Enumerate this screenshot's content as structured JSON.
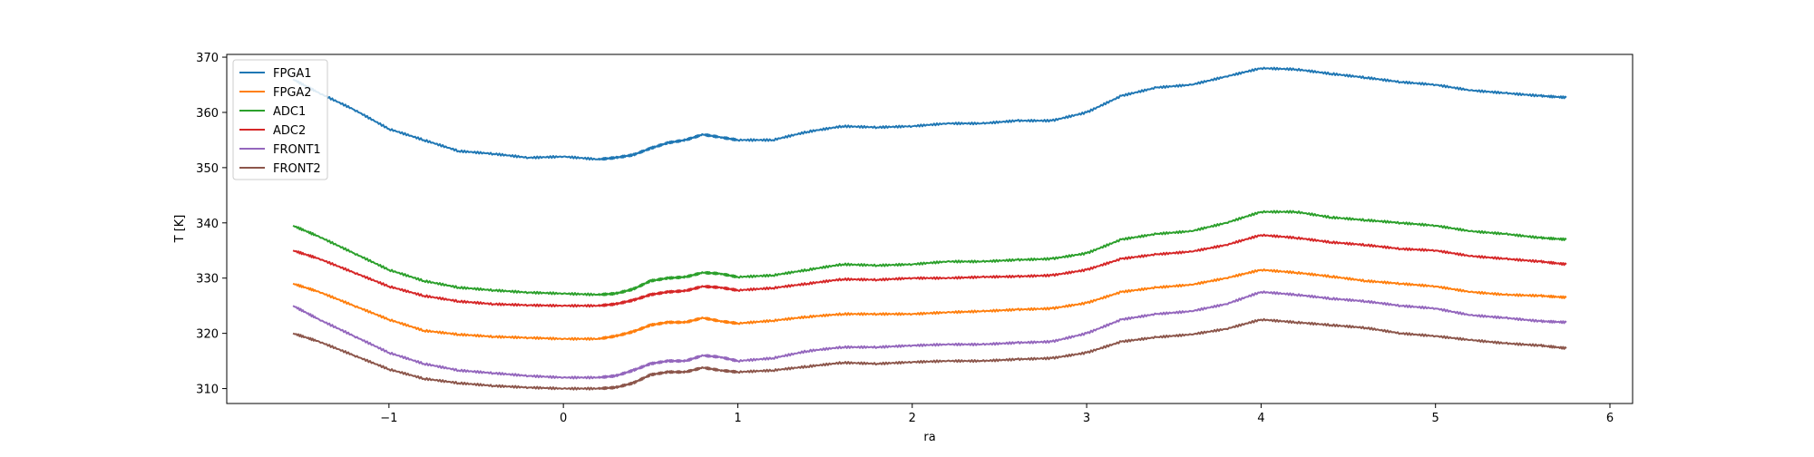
{
  "chart_data": {
    "type": "line",
    "title": "",
    "xlabel": "ra",
    "ylabel": "T [K]",
    "xlim": [
      -1.93,
      6.13
    ],
    "ylim": [
      307.3,
      370.5
    ],
    "xticks": [
      -1,
      0,
      1,
      2,
      3,
      4,
      5,
      6
    ],
    "yticks": [
      310,
      320,
      330,
      340,
      350,
      360,
      370
    ],
    "grid": false,
    "legend_position": "top-left",
    "x": [
      -1.55,
      -1.4,
      -1.2,
      -1.0,
      -0.8,
      -0.6,
      -0.4,
      -0.2,
      0.0,
      0.2,
      0.3,
      0.4,
      0.5,
      0.6,
      0.7,
      0.8,
      0.9,
      1.0,
      1.2,
      1.4,
      1.6,
      1.8,
      2.0,
      2.2,
      2.4,
      2.6,
      2.8,
      3.0,
      3.2,
      3.4,
      3.6,
      3.8,
      4.0,
      4.2,
      4.4,
      4.6,
      4.8,
      5.0,
      5.2,
      5.4,
      5.6,
      5.75
    ],
    "series": [
      {
        "name": "FPGA1",
        "color": "#1f77b4",
        "values": [
          366.0,
          363.5,
          360.5,
          357.0,
          355.0,
          353.0,
          352.5,
          351.8,
          352.0,
          351.5,
          351.8,
          352.3,
          353.5,
          354.5,
          355.0,
          356.0,
          355.5,
          355.0,
          355.0,
          356.5,
          357.5,
          357.3,
          357.5,
          358.0,
          358.0,
          358.5,
          358.5,
          360.0,
          363.0,
          364.5,
          365.0,
          366.5,
          368.0,
          367.8,
          367.0,
          366.3,
          365.5,
          365.0,
          364.0,
          363.5,
          363.0,
          362.7
        ]
      },
      {
        "name": "FPGA2",
        "color": "#ff7f0e",
        "values": [
          329.0,
          327.5,
          325.0,
          322.5,
          320.5,
          319.8,
          319.4,
          319.2,
          319.0,
          319.0,
          319.5,
          320.3,
          321.5,
          322.0,
          322.0,
          322.8,
          322.2,
          321.8,
          322.3,
          323.0,
          323.5,
          323.5,
          323.5,
          323.8,
          324.0,
          324.3,
          324.5,
          325.5,
          327.5,
          328.3,
          328.8,
          330.0,
          331.5,
          331.0,
          330.3,
          329.5,
          329.0,
          328.5,
          327.5,
          327.0,
          326.8,
          326.5
        ]
      },
      {
        "name": "ADC1",
        "color": "#2ca02c",
        "values": [
          339.5,
          337.5,
          334.5,
          331.5,
          329.5,
          328.3,
          327.8,
          327.4,
          327.2,
          327.0,
          327.2,
          328.0,
          329.5,
          330.0,
          330.2,
          331.0,
          330.8,
          330.2,
          330.5,
          331.5,
          332.5,
          332.3,
          332.5,
          333.0,
          333.0,
          333.3,
          333.5,
          334.5,
          337.0,
          338.0,
          338.5,
          340.0,
          342.0,
          342.0,
          341.0,
          340.5,
          340.0,
          339.5,
          338.5,
          338.0,
          337.3,
          337.0
        ]
      },
      {
        "name": "ADC2",
        "color": "#d62728",
        "values": [
          335.0,
          333.5,
          331.0,
          328.5,
          326.8,
          325.8,
          325.3,
          325.1,
          325.0,
          325.0,
          325.3,
          326.0,
          327.0,
          327.5,
          327.7,
          328.5,
          328.3,
          327.8,
          328.2,
          329.0,
          329.8,
          329.7,
          330.0,
          330.0,
          330.2,
          330.3,
          330.5,
          331.5,
          333.5,
          334.3,
          334.8,
          336.0,
          337.8,
          337.3,
          336.5,
          336.0,
          335.3,
          335.0,
          334.0,
          333.5,
          333.0,
          332.5
        ]
      },
      {
        "name": "FRONT1",
        "color": "#9467bd",
        "values": [
          325.0,
          322.5,
          319.5,
          316.5,
          314.5,
          313.3,
          312.8,
          312.3,
          312.0,
          312.0,
          312.3,
          313.3,
          314.5,
          315.0,
          315.0,
          316.0,
          315.7,
          315.0,
          315.5,
          316.8,
          317.5,
          317.5,
          317.8,
          318.0,
          318.0,
          318.3,
          318.5,
          320.0,
          322.5,
          323.5,
          324.0,
          325.3,
          327.5,
          327.0,
          326.3,
          325.8,
          325.0,
          324.5,
          323.3,
          322.8,
          322.2,
          322.0
        ]
      },
      {
        "name": "FRONT2",
        "color": "#8c564b",
        "values": [
          320.0,
          318.5,
          316.0,
          313.5,
          311.8,
          311.0,
          310.5,
          310.2,
          310.0,
          310.0,
          310.2,
          311.0,
          312.5,
          313.0,
          313.0,
          313.8,
          313.3,
          313.0,
          313.3,
          314.0,
          314.7,
          314.5,
          314.8,
          315.0,
          315.0,
          315.3,
          315.5,
          316.5,
          318.5,
          319.3,
          319.8,
          320.8,
          322.5,
          322.0,
          321.5,
          321.0,
          320.0,
          319.5,
          318.8,
          318.2,
          317.8,
          317.3
        ]
      }
    ]
  }
}
